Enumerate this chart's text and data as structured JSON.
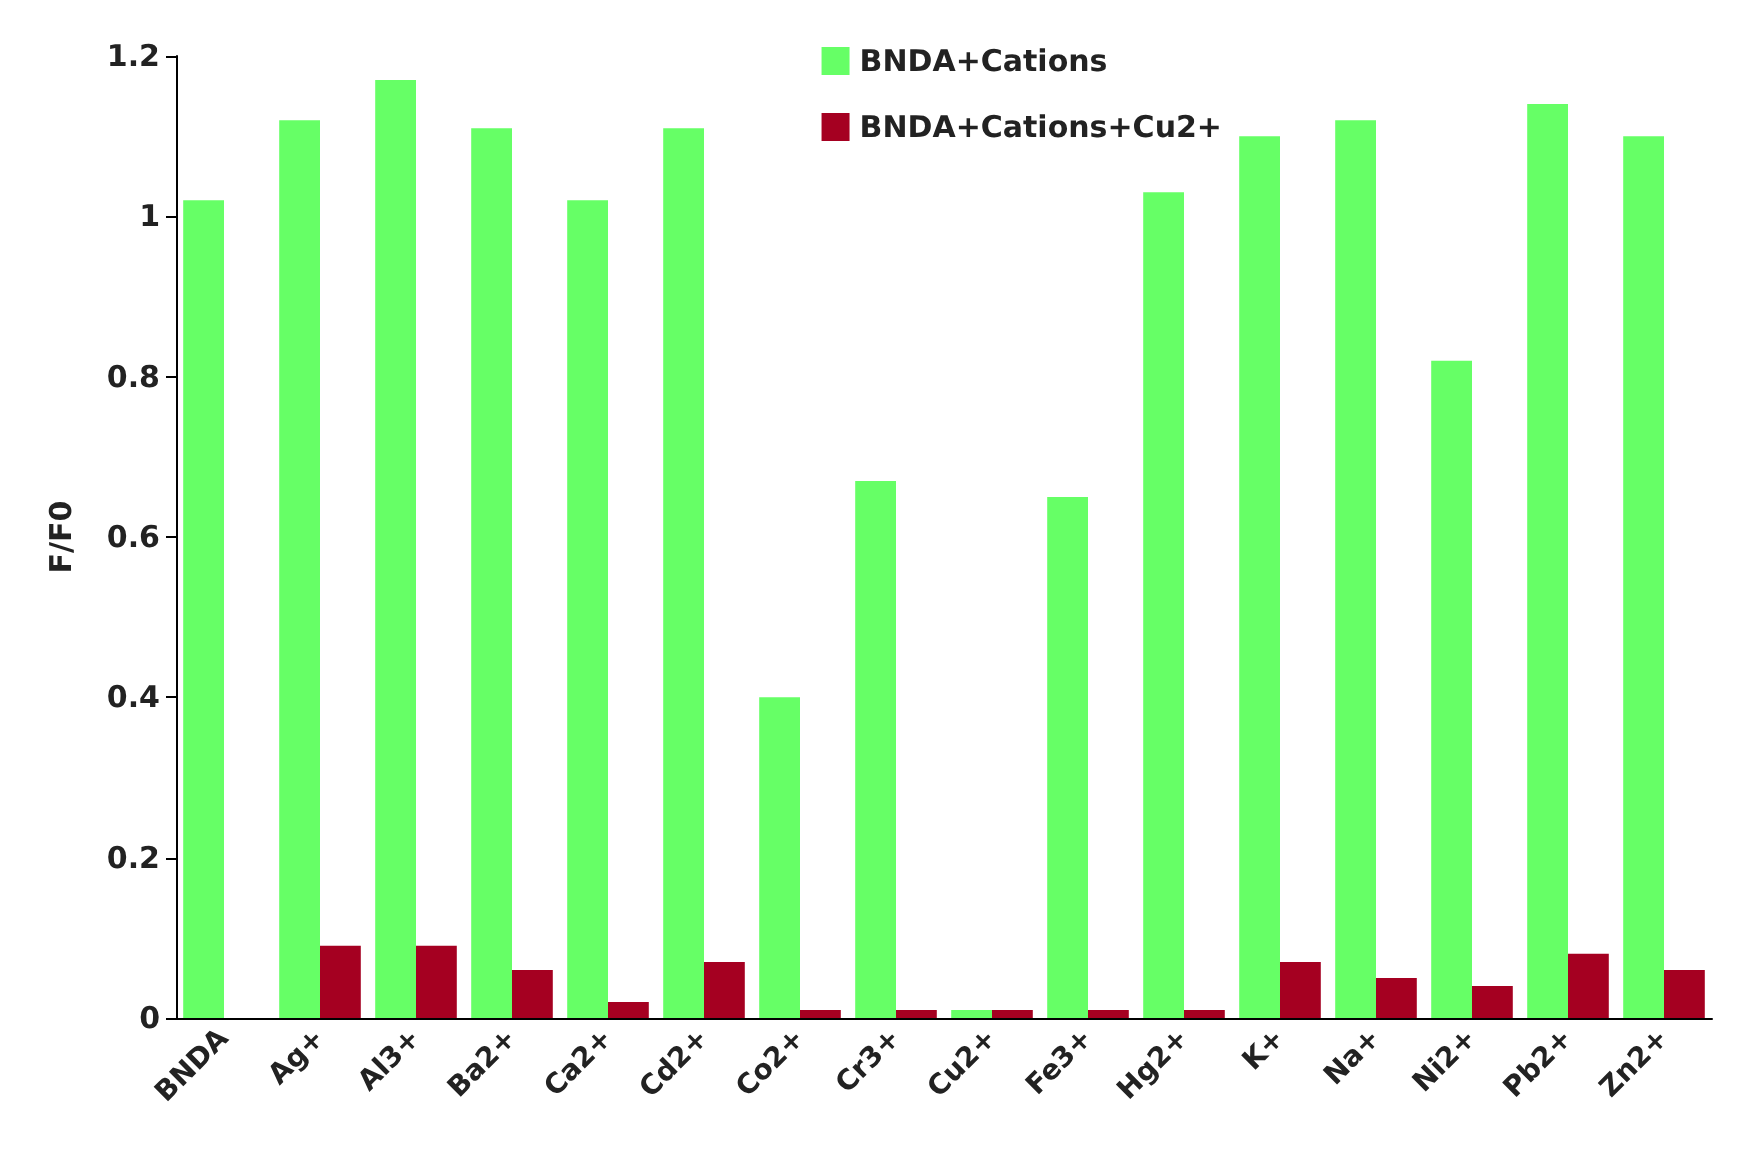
{
  "chart_data": {
    "type": "bar",
    "ylabel": "F/F0",
    "categories": [
      "BNDA",
      "Ag+",
      "Al3+",
      "Ba2+",
      "Ca2+",
      "Cd2+",
      "Co2+",
      "Cr3+",
      "Cu2+",
      "Fe3+",
      "Hg2+",
      "K+",
      "Na+",
      "Ni2+",
      "Pb2+",
      "Zn2+"
    ],
    "series": [
      {
        "name": "BNDA+Cations",
        "color": "#66ff66",
        "values": [
          1.02,
          1.12,
          1.17,
          1.11,
          1.02,
          1.11,
          0.4,
          0.67,
          0.01,
          0.65,
          1.03,
          1.1,
          1.12,
          0.82,
          1.14,
          1.1
        ]
      },
      {
        "name": "BNDA+Cations+Cu2+",
        "color": "#a50021",
        "values": [
          null,
          0.09,
          0.09,
          0.06,
          0.02,
          0.07,
          0.01,
          0.01,
          0.01,
          0.01,
          0.01,
          0.07,
          0.05,
          0.04,
          0.08,
          0.06
        ]
      }
    ],
    "ylim": [
      0,
      1.2
    ],
    "yticks": [
      0,
      0.2,
      0.4,
      0.6,
      0.8,
      1,
      1.2
    ],
    "grid": false,
    "legend": "top right"
  }
}
